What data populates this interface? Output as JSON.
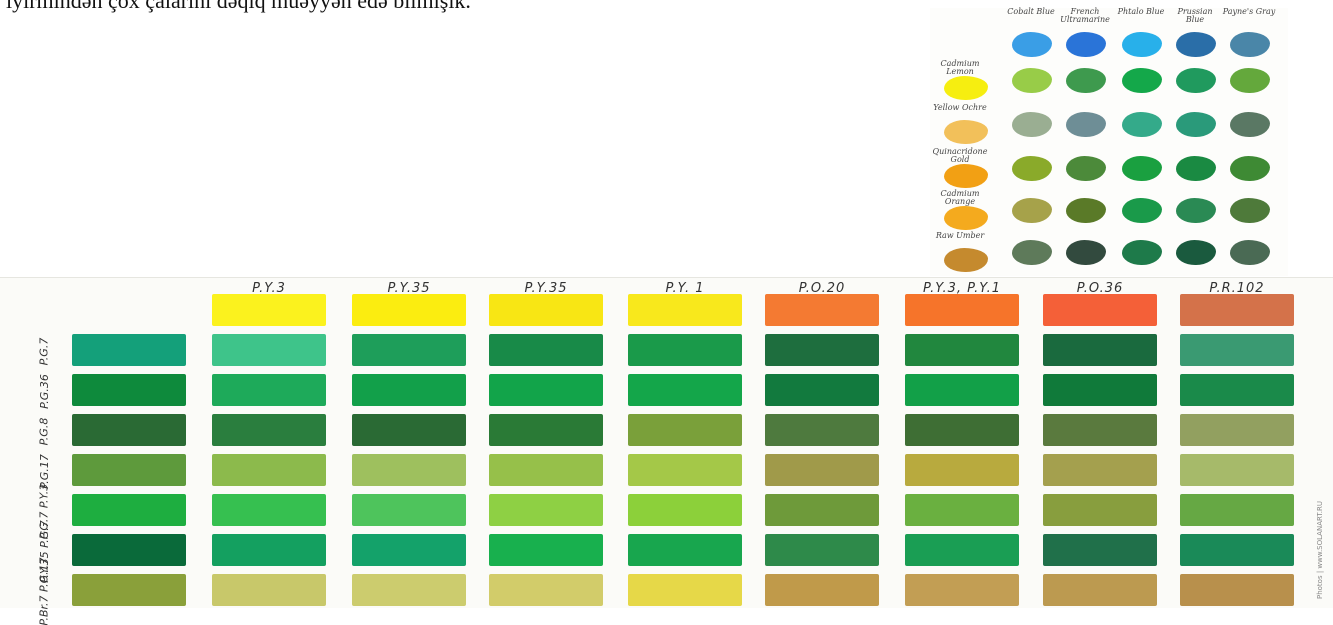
{
  "article": {
    "text": "iyirmindən çox çalarını dəqiq müəyyən edə bilmişik."
  },
  "mix_chart": {
    "columns": [
      "Cobalt Blue",
      "French Ultramarine",
      "Phtalo Blue",
      "Prussian Blue",
      "Payne's Gray"
    ],
    "rows": [
      "Cadmium Lemon",
      "Yellow Ochre",
      "Quinacridone Gold",
      "Cadmium Orange",
      "Raw Umber"
    ],
    "top_colors": [
      "#3a9ee6",
      "#2a74d8",
      "#28b0ea",
      "#2a6ea8",
      "#4a86a8"
    ],
    "base_colors": [
      "#f6ee10",
      "#f2c05a",
      "#f2a014",
      "#f4aa1e",
      "#c58a2e"
    ],
    "grid_colors": [
      [
        "#98cc48",
        "#3e9a4e",
        "#14a84a",
        "#209a5e",
        "#64a83c"
      ],
      [
        "#9aae92",
        "#6e8e96",
        "#34aa8a",
        "#2a9a7a",
        "#5a7864"
      ],
      [
        "#8aaa2a",
        "#4c8a3a",
        "#1aa040",
        "#1a8a42",
        "#3e8a34"
      ],
      [
        "#a6a24a",
        "#5a7a28",
        "#1a9a4a",
        "#2a8a54",
        "#4e7a3a"
      ],
      [
        "#5e7a5a",
        "#324a3e",
        "#1e7a4a",
        "#1a5a3e",
        "#4a6a54"
      ]
    ]
  },
  "swatch_chart": {
    "column_labels": [
      "P.Y.3",
      "P.Y.35",
      "P.Y.35",
      "P.Y. 1",
      "P.O.20",
      "P.Y.3, P.Y.1",
      "P.O.36",
      "P.R.102"
    ],
    "header_colors": [
      "#fbf21e",
      "#fbed10",
      "#f8e614",
      "#f8e81c",
      "#f47a32",
      "#f6742a",
      "#f46038",
      "#d4724a"
    ],
    "row_labels": [
      "P.G.7",
      "P.G.36",
      "P.G.8",
      "P.G.17",
      "P.G.7 P.Y.3",
      "P.Y.35 P.G.7",
      "P.Br.7 P.G.17"
    ],
    "base_colors": [
      "#14a07a",
      "#0e8a3c",
      "#2a6a34",
      "#5e9a3c",
      "#1eae40",
      "#0a6a3a",
      "#8aa03a"
    ],
    "grid_colors": [
      [
        "#3ec48a",
        "#1e9e5a",
        "#188a48",
        "#1a9a4a",
        "#1e6e3e",
        "#21873e",
        "#1a6a3e",
        "#3a9a72"
      ],
      [
        "#1eaa5a",
        "#12a04a",
        "#12a44a",
        "#14a64a",
        "#127a3e",
        "#12a048",
        "#107a3a",
        "#1a8a4a"
      ],
      [
        "#2a7e3e",
        "#2a6a34",
        "#2a7a36",
        "#7aa03a",
        "#4e7a3e",
        "#3e6e34",
        "#5a7a3e",
        "#92a060"
      ],
      [
        "#8cba4c",
        "#9ec05e",
        "#96c04a",
        "#a4c848",
        "#a09a4a",
        "#b8aa3e",
        "#a4a04e",
        "#a6ba6a"
      ],
      [
        "#36c050",
        "#4ec45c",
        "#8ed044",
        "#8cd03a",
        "#6e9a3a",
        "#6ab040",
        "#889e3e",
        "#66a844"
      ],
      [
        "#14a060",
        "#14a26a",
        "#18b04e",
        "#18a64e",
        "#2e8a4a",
        "#1a9e54",
        "#20704a",
        "#1a8a58"
      ],
      [
        "#c8c86a",
        "#cccc6e",
        "#d2cc6a",
        "#e6d848",
        "#c09a4a",
        "#c29e54",
        "#bc9a50",
        "#b8904c"
      ]
    ]
  },
  "watermark": "Photos | www.SOLANART.RU"
}
